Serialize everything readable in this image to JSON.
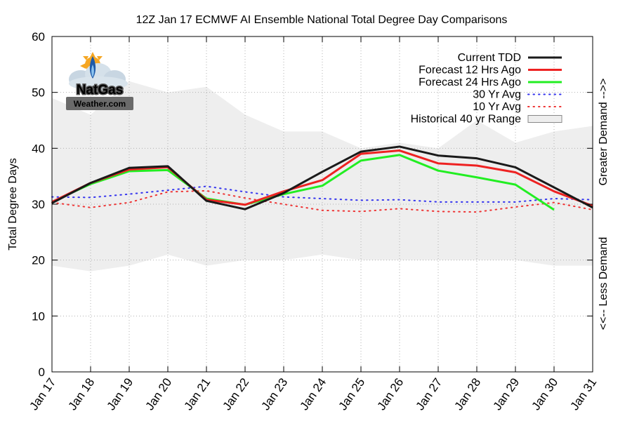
{
  "chart_data": {
    "type": "line",
    "title": "12Z Jan 17 ECMWF AI Ensemble National Total Degree Day Comparisons",
    "ylabel": "Total Degree Days",
    "right_label_top": "Greater Demand -->>",
    "right_label_bottom": "<<-- Less Demand",
    "ylim": [
      0,
      60
    ],
    "yticks": [
      0,
      10,
      20,
      30,
      40,
      50,
      60
    ],
    "categories": [
      "Jan 17",
      "Jan 18",
      "Jan 19",
      "Jan 20",
      "Jan 21",
      "Jan 22",
      "Jan 23",
      "Jan 24",
      "Jan 25",
      "Jan 26",
      "Jan 27",
      "Jan 28",
      "Jan 29",
      "Jan 30",
      "Jan 31"
    ],
    "series": [
      {
        "name": "Current TDD",
        "color": "#1a1a1a",
        "style": "solid",
        "values": [
          30.2,
          33.8,
          36.5,
          36.8,
          30.6,
          29.1,
          32.0,
          35.8,
          39.4,
          40.3,
          38.7,
          38.2,
          36.6,
          33.0,
          29.4
        ]
      },
      {
        "name": "Forecast 12 Hrs Ago",
        "color": "#ee2222",
        "style": "solid",
        "values": [
          30.4,
          33.8,
          36.2,
          36.6,
          30.8,
          29.9,
          32.3,
          34.3,
          39.0,
          39.6,
          37.3,
          36.9,
          35.7,
          32.3,
          29.7
        ]
      },
      {
        "name": "Forecast 24 Hrs Ago",
        "color": "#22ee22",
        "style": "solid",
        "values": [
          30.4,
          33.6,
          35.9,
          36.1,
          31.0,
          29.9,
          31.8,
          33.3,
          37.8,
          38.8,
          36.0,
          34.8,
          33.5,
          29.0,
          null
        ]
      },
      {
        "name": "30 Yr Avg",
        "color": "#3333ee",
        "style": "dotted",
        "values": [
          31.3,
          31.2,
          31.8,
          32.5,
          33.2,
          32.2,
          31.3,
          31.0,
          30.7,
          30.8,
          30.4,
          30.4,
          30.4,
          31.0,
          30.8
        ]
      },
      {
        "name": "10 Yr Avg",
        "color": "#ee3333",
        "style": "dotted",
        "values": [
          30.3,
          29.4,
          30.3,
          32.2,
          32.4,
          31.1,
          30.0,
          28.9,
          28.7,
          29.2,
          28.7,
          28.6,
          29.5,
          30.3,
          29.0
        ]
      }
    ],
    "range": {
      "name": "Historical 40 yr Range",
      "color": "#eeeeee",
      "upper": [
        49.0,
        46.0,
        52.0,
        50.0,
        51.0,
        46.0,
        43.0,
        43.0,
        40.0,
        41.0,
        40.0,
        45.0,
        41.0,
        43.0,
        44.0
      ],
      "lower": [
        19.0,
        18.0,
        19.0,
        21.0,
        19.0,
        20.0,
        20.0,
        21.0,
        20.0,
        20.0,
        20.0,
        20.0,
        20.0,
        19.0,
        19.0
      ]
    },
    "legend_position": "top-right",
    "grid": true
  },
  "logo": {
    "line1": "NatGas",
    "line2": "Weather.com"
  }
}
